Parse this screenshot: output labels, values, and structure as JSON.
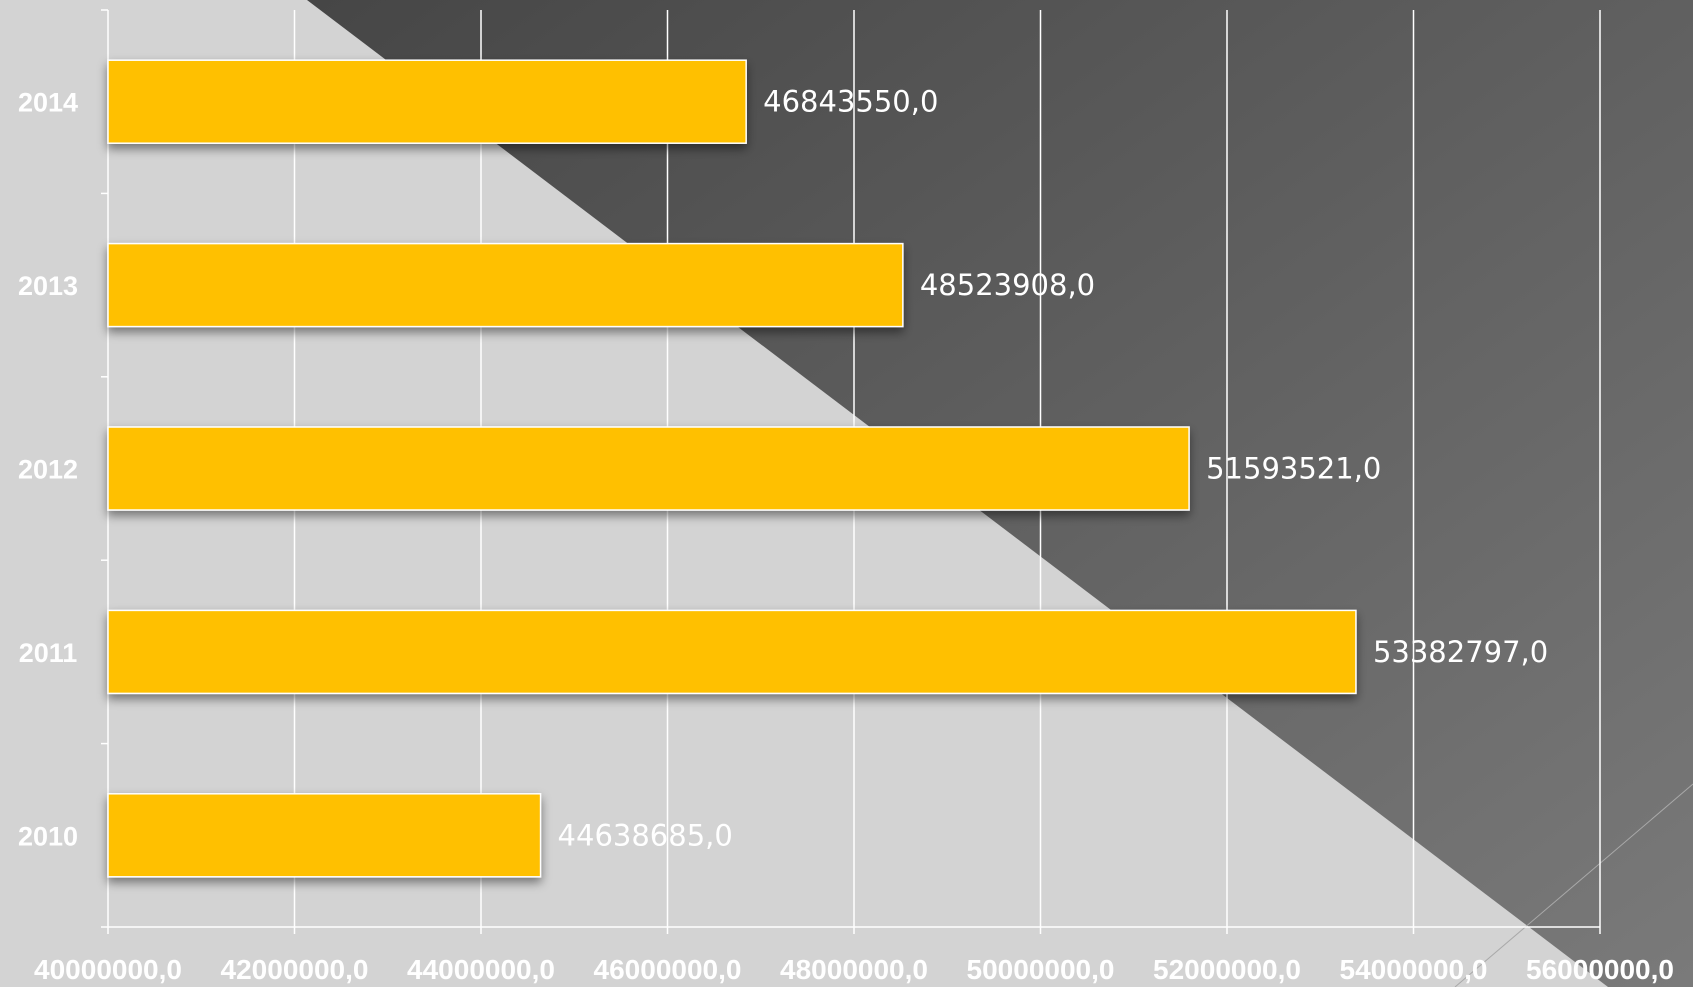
{
  "chart_data": {
    "type": "bar",
    "orientation": "horizontal",
    "categories": [
      "2014",
      "2013",
      "2012",
      "2011",
      "2010"
    ],
    "values": [
      46843550.0,
      48523908.0,
      51593521.0,
      53382797.0,
      44638685.0
    ],
    "data_labels": [
      "46843550,0",
      "48523908,0",
      "51593521,0",
      "53382797,0",
      "44638685,0"
    ],
    "x_ticks": [
      40000000,
      42000000,
      44000000,
      46000000,
      48000000,
      50000000,
      52000000,
      54000000,
      56000000
    ],
    "x_tick_labels": [
      "40000000,0",
      "42000000,0",
      "44000000,0",
      "46000000,0",
      "48000000,0",
      "50000000,0",
      "52000000,0",
      "54000000,0",
      "56000000,0"
    ],
    "xlim": [
      40000000,
      56000000
    ],
    "grid": true,
    "legend": "none",
    "title": "",
    "xlabel": "",
    "ylabel": ""
  },
  "colors": {
    "bar": "#ffc000",
    "background_light": "#d3d3d3",
    "background_dark_start": "#464646",
    "background_dark_end": "#7a7a7a",
    "gridline": "#ffffff",
    "text": "#ffffff"
  }
}
